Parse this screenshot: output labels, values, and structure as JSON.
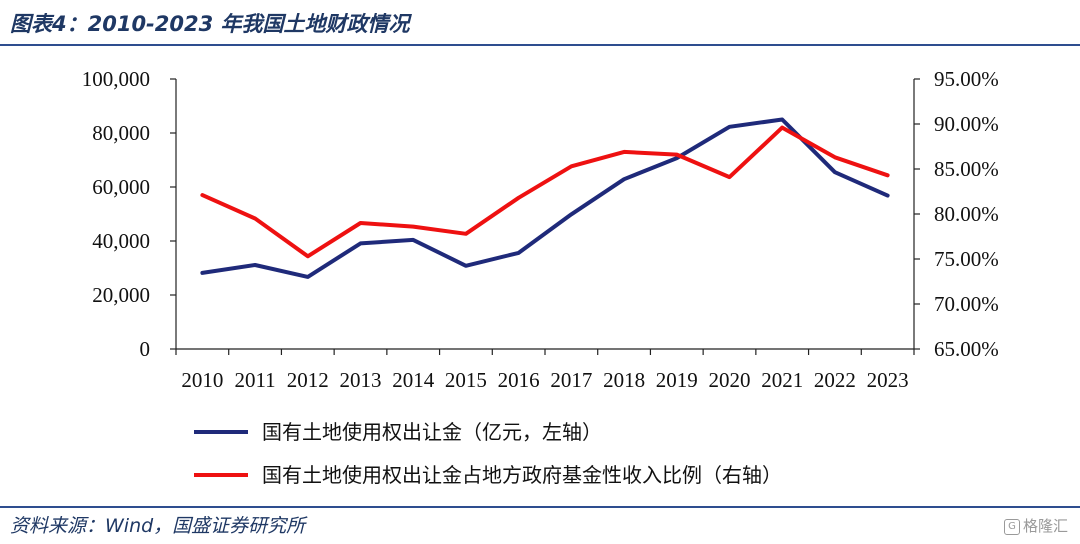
{
  "header": {
    "title": "图表4：2010-2023 年我国土地财政情况"
  },
  "footer": {
    "source": "资料来源：Wind，国盛证券研究所",
    "watermark": "格隆汇"
  },
  "chart_data": {
    "type": "line",
    "categories": [
      "2010",
      "2011",
      "2012",
      "2013",
      "2014",
      "2015",
      "2016",
      "2017",
      "2018",
      "2019",
      "2020",
      "2021",
      "2022",
      "2023"
    ],
    "series": [
      {
        "name": "国有土地使用权出让金（亿元，左轴）",
        "axis": "left",
        "color": "#1f2a7a",
        "values": [
          28200,
          31100,
          26700,
          39100,
          40400,
          30800,
          35600,
          49900,
          62900,
          70700,
          82300,
          85000,
          65500,
          56800
        ]
      },
      {
        "name": "国有土地使用权出让金占地方政府基金性收入比例（右轴）",
        "axis": "right",
        "color": "#ee1111",
        "values": [
          82.1,
          79.5,
          75.3,
          79.0,
          78.6,
          77.8,
          81.8,
          85.3,
          86.9,
          86.6,
          84.1,
          89.6,
          86.3,
          84.3
        ]
      }
    ],
    "left_axis": {
      "range": [
        0,
        100000
      ],
      "ticks": [
        0,
        20000,
        40000,
        60000,
        80000,
        100000
      ],
      "tick_labels": [
        "0",
        "20,000",
        "40,000",
        "60,000",
        "80,000",
        "100,000"
      ]
    },
    "right_axis": {
      "range": [
        65,
        95
      ],
      "ticks": [
        65,
        70,
        75,
        80,
        85,
        90,
        95
      ],
      "tick_labels": [
        "65.00%",
        "70.00%",
        "75.00%",
        "80.00%",
        "85.00%",
        "90.00%",
        "95.00%"
      ]
    },
    "grid": false,
    "legend_position": "bottom"
  }
}
